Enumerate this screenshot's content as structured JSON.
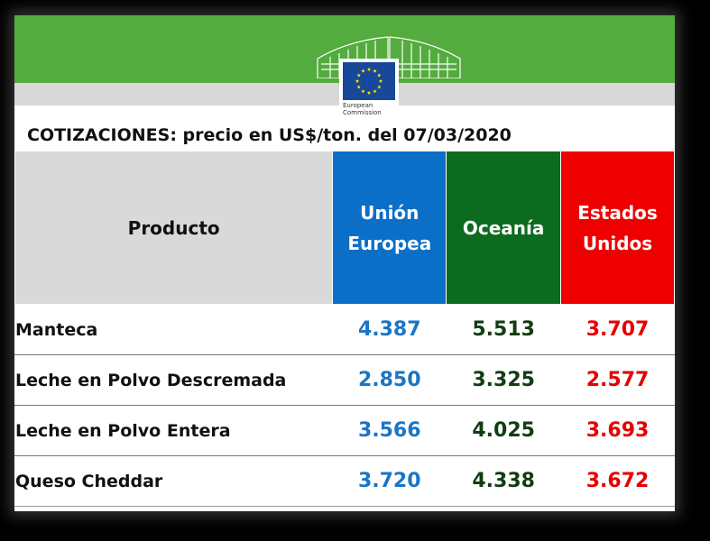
{
  "logo": {
    "line1": "European",
    "line2": "Commission",
    "flag_color": "#174899",
    "star_color": "#ffe500"
  },
  "title": "COTIZACIONES: precio en US$/ton. del 07/03/2020",
  "table": {
    "headers": {
      "product": "Producto",
      "eu": [
        "Unión",
        "Europea"
      ],
      "oceania": "Oceanía",
      "us": [
        "Estados",
        "Unidos"
      ]
    },
    "colors": {
      "eu": "#0b6ec7",
      "oceania": "#0d6b1f",
      "us": "#ef0000",
      "banner": "#54ab3e"
    },
    "rows": [
      {
        "product": "Manteca",
        "eu": "4.387",
        "oceania": "5.513",
        "us": "3.707"
      },
      {
        "product": "Leche en Polvo Descremada",
        "eu": "2.850",
        "oceania": "3.325",
        "us": "2.577"
      },
      {
        "product": "Leche en Polvo Entera",
        "eu": "3.566",
        "oceania": "4.025",
        "us": "3.693"
      },
      {
        "product": "Queso Cheddar",
        "eu": "3.720",
        "oceania": "4.338",
        "us": "3.672"
      }
    ]
  }
}
